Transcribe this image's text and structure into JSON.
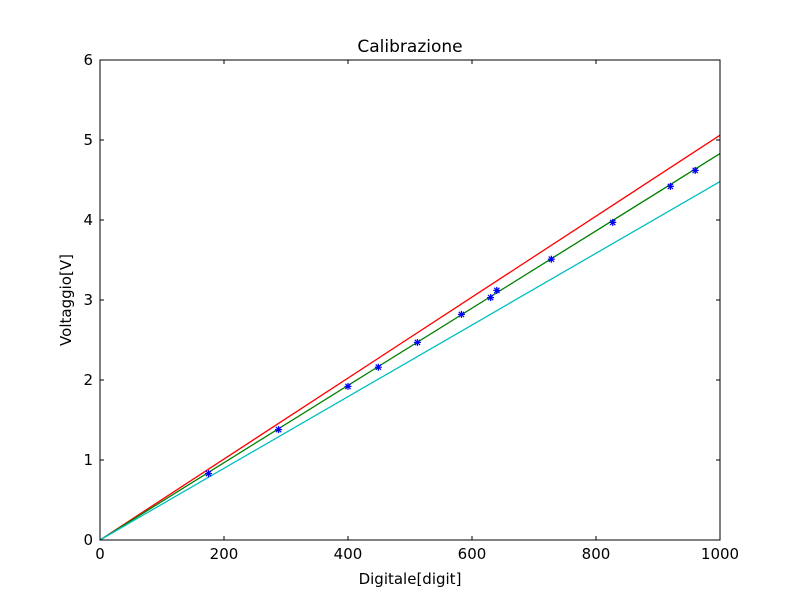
{
  "chart_data": {
    "type": "line",
    "title": "Calibrazione",
    "xlabel": "Digitale[digit]",
    "ylabel": "Voltaggio[V]",
    "xlim": [
      0,
      1000
    ],
    "ylim": [
      0,
      6
    ],
    "xticks": [
      0,
      200,
      400,
      600,
      800,
      1000
    ],
    "yticks": [
      0,
      1,
      2,
      3,
      4,
      5,
      6
    ],
    "grid": false,
    "series": [
      {
        "kind": "line",
        "color": "#ff0000",
        "x": [
          0,
          1000
        ],
        "y": [
          0,
          5.06
        ]
      },
      {
        "kind": "line",
        "color": "#008000",
        "x": [
          0,
          1000
        ],
        "y": [
          0,
          4.83
        ]
      },
      {
        "kind": "line",
        "color": "#00bfbf",
        "x": [
          0,
          1000
        ],
        "y": [
          0,
          4.48
        ]
      },
      {
        "kind": "scatter",
        "color": "#0000ff",
        "marker": "star",
        "x": [
          175,
          288,
          400,
          449,
          512,
          583,
          630,
          640,
          728,
          827,
          920,
          960
        ],
        "y": [
          0.83,
          1.38,
          1.92,
          2.16,
          2.47,
          2.82,
          3.03,
          3.12,
          3.51,
          3.97,
          4.42,
          4.62
        ],
        "yerr": 0.04
      }
    ]
  }
}
